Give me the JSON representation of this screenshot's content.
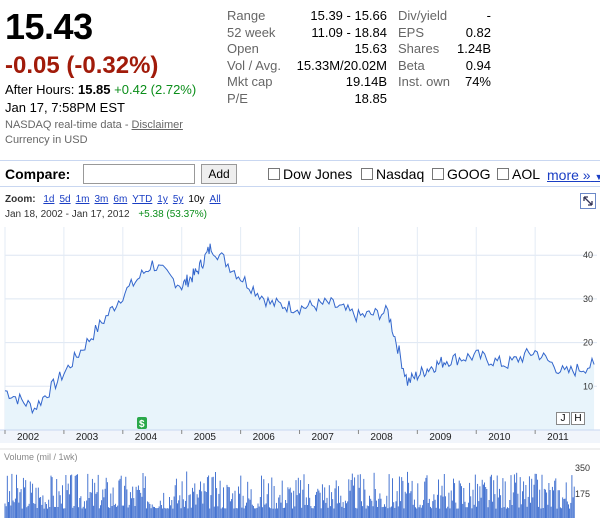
{
  "quote": {
    "price": "15.43",
    "change": "-0.05 (-0.32%)",
    "after_hours_label": "After Hours:",
    "after_hours_price": "15.85",
    "after_hours_change": "+0.42 (2.72%)",
    "timestamp": "Jan 17, 7:58PM EST",
    "realtime_text": "NASDAQ real-time data - ",
    "disclaimer_link": "Disclaimer",
    "currency": "Currency in USD"
  },
  "stats_left": [
    {
      "label": "Range",
      "value": "15.39 - 15.66"
    },
    {
      "label": "52 week",
      "value": "11.09 - 18.84"
    },
    {
      "label": "Open",
      "value": "15.63"
    },
    {
      "label": "Vol / Avg.",
      "value": "15.33M/20.02M"
    },
    {
      "label": "Mkt cap",
      "value": "19.14B"
    },
    {
      "label": "P/E",
      "value": "18.85"
    }
  ],
  "stats_right": [
    {
      "label": "Div/yield",
      "value": "-"
    },
    {
      "label": "EPS",
      "value": "0.82"
    },
    {
      "label": "Shares",
      "value": "1.24B"
    },
    {
      "label": "Beta",
      "value": "0.94"
    },
    {
      "label": "Inst. own",
      "value": "74%"
    }
  ],
  "compare": {
    "label": "Compare:",
    "input_value": "",
    "add_label": "Add",
    "options": [
      "Dow Jones",
      "Nasdaq",
      "GOOG",
      "AOL"
    ],
    "more_label": "more »"
  },
  "chart_toolbar": {
    "zoom_label": "Zoom:",
    "zoom_options": [
      "1d",
      "5d",
      "1m",
      "3m",
      "6m",
      "YTD",
      "1y",
      "5y",
      "10y",
      "All"
    ],
    "selected_zoom": "10y",
    "date_range": "Jan 18, 2002  -  Jan 17, 2012",
    "range_change": "+5.38 (53.37%)",
    "volume_label": "Volume (mil / 1wk)",
    "mini_buttons": [
      "J",
      "H"
    ],
    "dividend_marker": "$"
  },
  "colors": {
    "negative": "#a11b0a",
    "positive": "#0b8e1a",
    "link": "#1a3ec4",
    "line": "#3366cc",
    "area": "#e8f4fb"
  },
  "chart_data": [
    {
      "type": "area",
      "x": [
        "2002-01",
        "2002-07",
        "2003-01",
        "2003-07",
        "2004-01",
        "2004-07",
        "2005-01",
        "2005-04",
        "2005-07",
        "2006-01",
        "2006-07",
        "2007-01",
        "2007-07",
        "2008-01",
        "2008-07",
        "2008-11",
        "2009-03",
        "2009-07",
        "2010-01",
        "2010-07",
        "2011-01",
        "2011-07",
        "2012-01"
      ],
      "series": [
        {
          "values": [
            9,
            5,
            13,
            22,
            31,
            38,
            33,
            36,
            42,
            35,
            29,
            28,
            29,
            26,
            27,
            11,
            14,
            16,
            17,
            15,
            18,
            13,
            15
          ]
        }
      ],
      "x_ticks": [
        "2002",
        "2003",
        "2004",
        "2005",
        "2006",
        "2007",
        "2008",
        "2009",
        "2010",
        "2011"
      ],
      "y_ticks": [
        "10",
        "20",
        "30",
        "40"
      ],
      "ylim": [
        0,
        46
      ]
    },
    {
      "type": "bar",
      "title": "Volume (mil / 1wk)",
      "y_ticks": [
        "175",
        "350"
      ],
      "ylim": [
        0,
        350
      ],
      "approx_weekly_range": [
        70,
        320
      ]
    }
  ]
}
